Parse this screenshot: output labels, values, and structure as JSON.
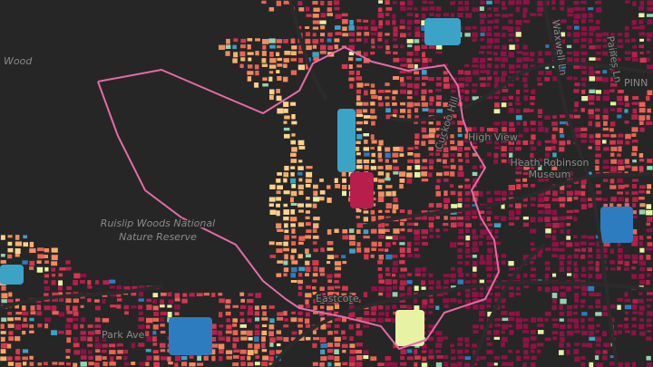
{
  "map": {
    "labels": [
      "Wood",
      "Ruislip Woods National",
      "Nature Reserve",
      "High View",
      "Heath Robinson",
      "Museum",
      "Park Ave",
      "Eastcote",
      "Cuckoo Hill",
      "Paines Ln",
      "Waxwell Ln",
      "PINN"
    ]
  }
}
